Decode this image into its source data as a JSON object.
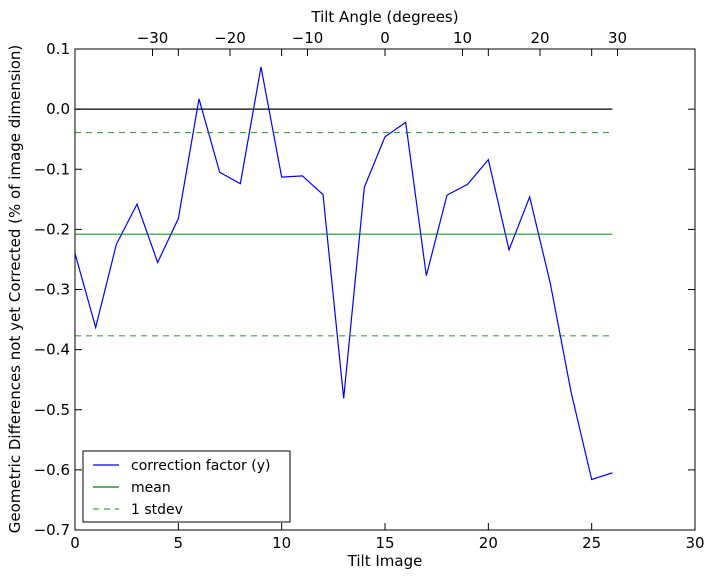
{
  "chart_data": {
    "type": "line",
    "title": "",
    "xlabel": "Tilt Image",
    "ylabel": "Geometric Differences not yet Corrected (% of image dimension)",
    "x2label": "Tilt Angle (degrees)",
    "xlim": [
      0,
      30
    ],
    "ylim": [
      -0.7,
      0.1
    ],
    "x2lim": [
      -40,
      40
    ],
    "xticks": [
      0,
      5,
      10,
      15,
      20,
      25,
      30
    ],
    "xtick_labels": [
      "0",
      "5",
      "10",
      "15",
      "20",
      "25",
      "30"
    ],
    "yticks": [
      0.1,
      0.0,
      -0.1,
      -0.2,
      -0.3,
      -0.4,
      -0.5,
      -0.6,
      -0.7
    ],
    "ytick_labels": [
      "0.1",
      "0.0",
      "−0.1",
      "−0.2",
      "−0.3",
      "−0.4",
      "−0.5",
      "−0.6",
      "−0.7"
    ],
    "x2ticks": [
      -30,
      -20,
      -10,
      0,
      10,
      20,
      30
    ],
    "x2tick_labels": [
      "−30",
      "−20",
      "−10",
      "0",
      "10",
      "20",
      "30"
    ],
    "grid": false,
    "legend_position": "lower-left",
    "zero_line": {
      "y": 0.0,
      "x_range": [
        0,
        26
      ],
      "color": "#000000"
    },
    "series": [
      {
        "name": "correction factor (y)",
        "color": "#0000ff",
        "style": "solid",
        "x": [
          0,
          1,
          2,
          3,
          4,
          5,
          6,
          7,
          8,
          9,
          10,
          11,
          12,
          13,
          14,
          15,
          16,
          17,
          18,
          19,
          20,
          21,
          22,
          23,
          24,
          25,
          26
        ],
        "y": [
          -0.24,
          -0.363,
          -0.225,
          -0.158,
          -0.255,
          -0.182,
          0.017,
          -0.105,
          -0.124,
          0.07,
          -0.113,
          -0.111,
          -0.142,
          -0.481,
          -0.13,
          -0.046,
          -0.022,
          -0.277,
          -0.143,
          -0.125,
          -0.084,
          -0.234,
          -0.146,
          -0.29,
          -0.47,
          -0.616,
          -0.605
        ]
      },
      {
        "name": "mean",
        "color": "#008000",
        "style": "solid",
        "x": [
          0,
          26
        ],
        "y": [
          -0.208,
          -0.208
        ]
      },
      {
        "name": "1 stdev",
        "color": "#008000",
        "style": "dashed",
        "x": [
          0,
          26
        ],
        "y": [
          -0.039,
          -0.039
        ]
      },
      {
        "name": "",
        "color": "#008000",
        "style": "dashed",
        "x": [
          0,
          26
        ],
        "y": [
          -0.377,
          -0.377
        ]
      }
    ]
  }
}
